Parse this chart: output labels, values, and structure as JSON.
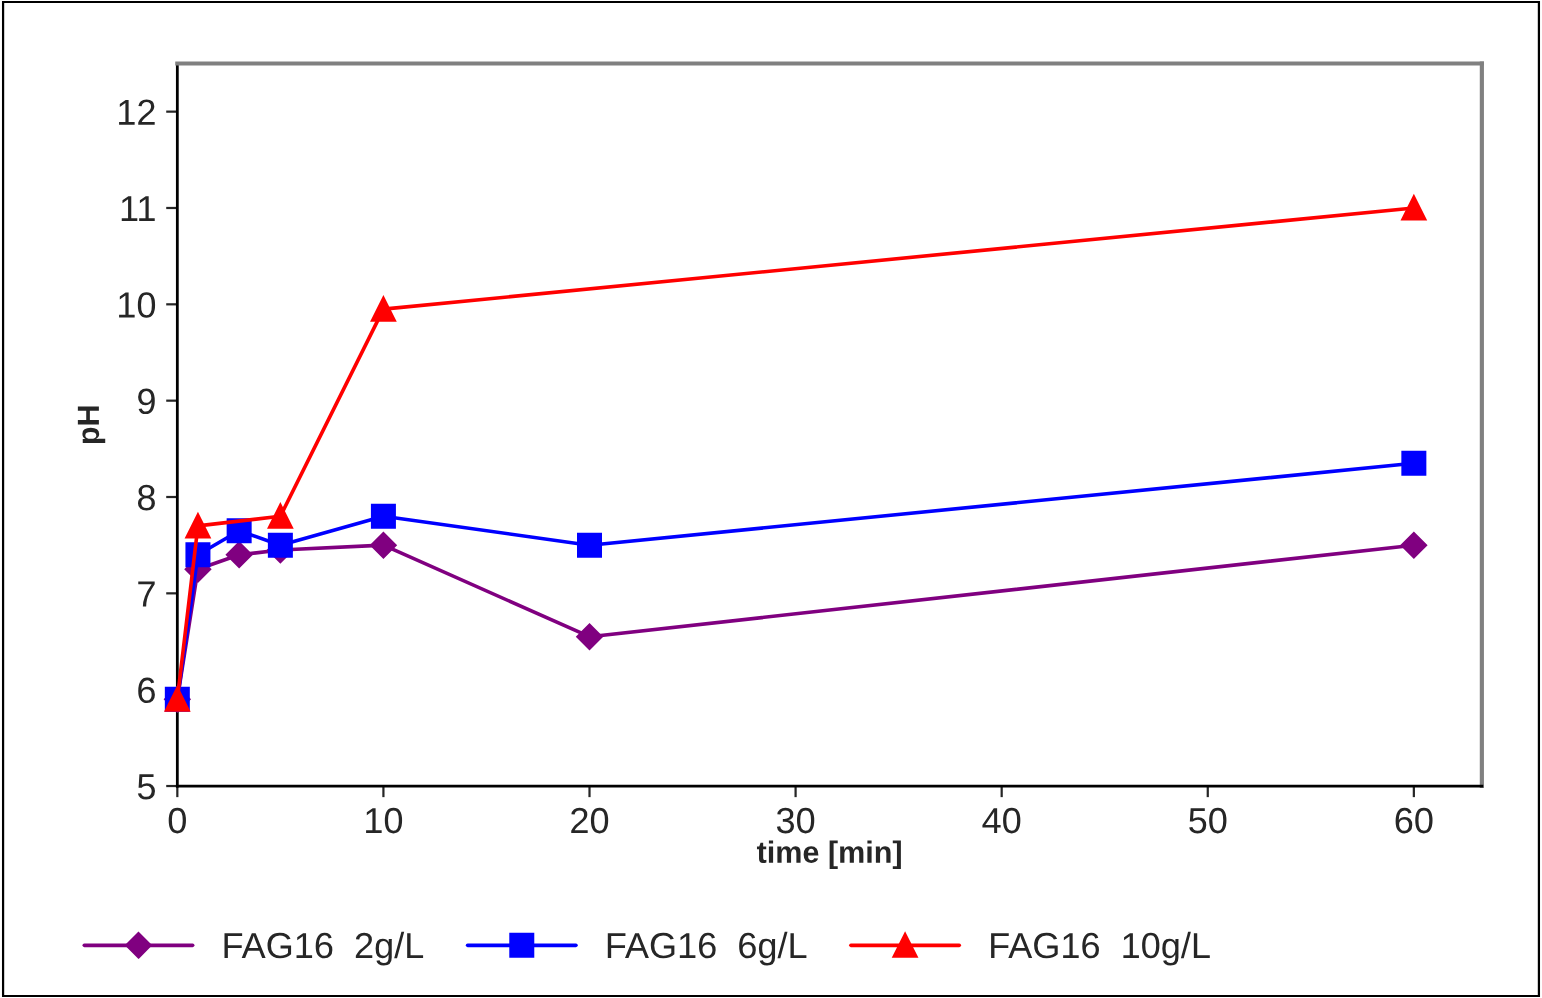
{
  "chart_data": {
    "type": "line",
    "xlabel": "time [min]",
    "ylabel": "pH",
    "xlim": [
      0,
      63.3
    ],
    "xticks": [
      0,
      10,
      20,
      30,
      40,
      50,
      60
    ],
    "ylim": [
      5,
      12.5
    ],
    "yticks": [
      5,
      6,
      7,
      8,
      9,
      10,
      11,
      12
    ],
    "grid": false,
    "legend": "bottom",
    "series": [
      {
        "name": "FAG16  2g/L",
        "color": "#800080",
        "marker": "diamond",
        "x": [
          0,
          1,
          3,
          5,
          10,
          20,
          60
        ],
        "values": [
          5.9,
          7.25,
          7.4,
          7.45,
          7.5,
          6.55,
          7.5
        ]
      },
      {
        "name": "FAG16  6g/L",
        "color": "#0000ff",
        "marker": "square",
        "x": [
          0,
          1,
          3,
          5,
          10,
          20,
          60
        ],
        "values": [
          5.9,
          7.4,
          7.65,
          7.5,
          7.8,
          7.5,
          8.35
        ]
      },
      {
        "name": "FAG16  10g/L",
        "color": "#ff0000",
        "marker": "triangle",
        "x": [
          0,
          1,
          5,
          10,
          60
        ],
        "values": [
          5.9,
          7.7,
          7.8,
          9.95,
          11.0
        ]
      }
    ]
  }
}
